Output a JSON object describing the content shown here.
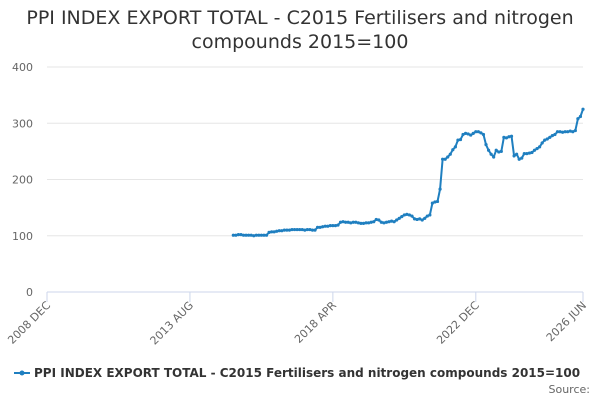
{
  "chart_data": {
    "type": "line",
    "title": "PPI INDEX EXPORT TOTAL - C2015 Fertilisers and nitrogen compounds 2015=100",
    "source": "Source:",
    "x": [
      "2015-01",
      "2015-02",
      "2015-03",
      "2015-04",
      "2015-05",
      "2015-06",
      "2015-07",
      "2015-08",
      "2015-09",
      "2015-10",
      "2015-11",
      "2015-12",
      "2016-01",
      "2016-02",
      "2016-03",
      "2016-04",
      "2016-05",
      "2016-06",
      "2016-07",
      "2016-08",
      "2016-09",
      "2016-10",
      "2016-11",
      "2016-12",
      "2017-01",
      "2017-02",
      "2017-03",
      "2017-04",
      "2017-05",
      "2017-06",
      "2017-07",
      "2017-08",
      "2017-09",
      "2017-10",
      "2017-11",
      "2017-12",
      "2018-01",
      "2018-02",
      "2018-03",
      "2018-04",
      "2018-05",
      "2018-06",
      "2018-07",
      "2018-08",
      "2018-09",
      "2018-10",
      "2018-11",
      "2018-12",
      "2019-01",
      "2019-02",
      "2019-03",
      "2019-04",
      "2019-05",
      "2019-06",
      "2019-07",
      "2019-08",
      "2019-09",
      "2019-10",
      "2019-11",
      "2019-12",
      "2020-01",
      "2020-02",
      "2020-03",
      "2020-04",
      "2020-05",
      "2020-06",
      "2020-07",
      "2020-08",
      "2020-09",
      "2020-10",
      "2020-11",
      "2020-12",
      "2021-01",
      "2021-02",
      "2021-03",
      "2021-04",
      "2021-05",
      "2021-06",
      "2021-07",
      "2021-08",
      "2021-09",
      "2021-10",
      "2021-11",
      "2021-12",
      "2022-01",
      "2022-02",
      "2022-03",
      "2022-04",
      "2022-05",
      "2022-06",
      "2022-07",
      "2022-08",
      "2022-09",
      "2022-10",
      "2022-11",
      "2022-12",
      "2023-01",
      "2023-02",
      "2023-03",
      "2023-04",
      "2023-05",
      "2023-06",
      "2023-07",
      "2023-08",
      "2023-09",
      "2023-10",
      "2023-11",
      "2023-12",
      "2024-01",
      "2024-02",
      "2024-03",
      "2024-04",
      "2024-05",
      "2024-06",
      "2024-07",
      "2024-08",
      "2024-09",
      "2024-10",
      "2024-11",
      "2024-12",
      "2025-01",
      "2025-02",
      "2025-03",
      "2025-04",
      "2025-05",
      "2025-06",
      "2025-07",
      "2025-08",
      "2025-09",
      "2025-10",
      "2025-11",
      "2025-12",
      "2026-01",
      "2026-02",
      "2026-03",
      "2026-04",
      "2026-05",
      "2026-06"
    ],
    "series": [
      {
        "name": "PPI INDEX EXPORT TOTAL - C2015 Fertilisers and nitrogen compounds 2015=100",
        "color": "#1f7fc0",
        "values": [
          101,
          101,
          102,
          102,
          101,
          101,
          101,
          101,
          100,
          101,
          101,
          101,
          101,
          101,
          106,
          107,
          107,
          108,
          109,
          109,
          110,
          110,
          110,
          111,
          111,
          111,
          111,
          111,
          110,
          111,
          111,
          110,
          110,
          115,
          115,
          116,
          117,
          117,
          118,
          118,
          118,
          119,
          124,
          125,
          124,
          124,
          123,
          124,
          124,
          123,
          122,
          122,
          123,
          123,
          124,
          125,
          129,
          128,
          124,
          123,
          124,
          125,
          126,
          125,
          128,
          131,
          134,
          137,
          138,
          137,
          135,
          130,
          129,
          130,
          128,
          131,
          135,
          137,
          158,
          160,
          161,
          183,
          236,
          236,
          240,
          245,
          253,
          258,
          270,
          271,
          280,
          282,
          281,
          279,
          282,
          285,
          285,
          283,
          280,
          262,
          252,
          245,
          240,
          252,
          249,
          250,
          275,
          274,
          276,
          277,
          242,
          245,
          236,
          238,
          246,
          246,
          247,
          248,
          252,
          255,
          258,
          265,
          270,
          272,
          275,
          278,
          280,
          285,
          285,
          284,
          285,
          285,
          286,
          285,
          287,
          308,
          312,
          325
        ]
      }
    ],
    "xlim": [
      "2008-12",
      "2026-06"
    ],
    "xticks": [
      {
        "value": "2008-12",
        "label": "2008 DEC"
      },
      {
        "value": "2013-08",
        "label": "2013 AUG"
      },
      {
        "value": "2018-04",
        "label": "2018 APR"
      },
      {
        "value": "2022-12",
        "label": "2022 DEC"
      },
      {
        "value": "2026-06",
        "label": "2026 JUN"
      }
    ],
    "ylim": [
      0,
      400
    ],
    "yticks": [
      0,
      100,
      200,
      300,
      400
    ],
    "grid": true,
    "legend": "bottom"
  }
}
